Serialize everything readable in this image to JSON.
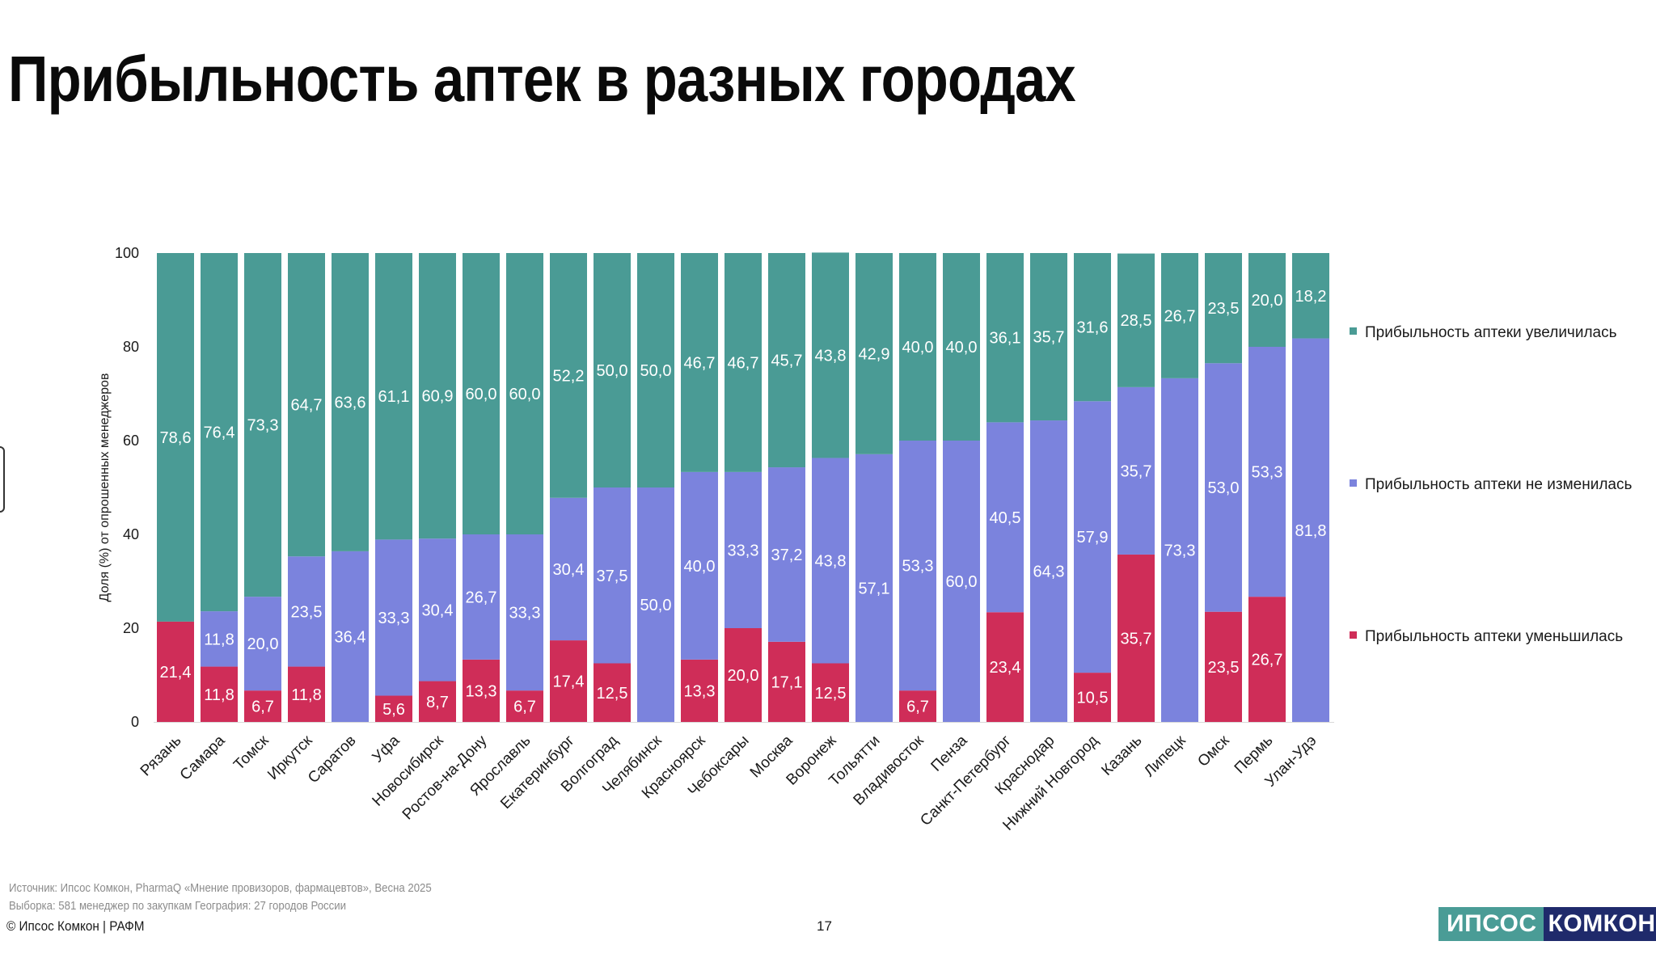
{
  "title": "Прибыльность аптек в разных городах",
  "footer": {
    "source_line1": "Источник: Ипсос Комкон, PharmaQ «Мнение провизоров, фармацевтов», Весна 2025",
    "source_line2": "Выборка: 581 менеджер по закупкам География: 27 городов России",
    "copyright": "© Ипсос Комкон | РАФМ",
    "page_number": "17"
  },
  "logo": {
    "part1": "ИПСОС",
    "part2": "КОМКОН"
  },
  "colors": {
    "increased": "#4a9b95",
    "unchanged": "#7b83dd",
    "decreased": "#cf2d58",
    "axis_text": "#1a1a1a",
    "label_text": "#ffffff"
  },
  "chart_data": {
    "type": "bar",
    "stacked": true,
    "ylabel": "Доля (%) от опрошенных менеджеров",
    "xlabel": "",
    "ylim": [
      0,
      100
    ],
    "yticks": [
      0,
      20,
      40,
      60,
      80,
      100
    ],
    "legend_position": "right",
    "categories": [
      "Рязань",
      "Самара",
      "Томск",
      "Иркутск",
      "Саратов",
      "Уфа",
      "Новосибирск",
      "Ростов-на-Дону",
      "Ярославль",
      "Екатеринбург",
      "Волгоград",
      "Челябинск",
      "Красноярск",
      "Чебоксары",
      "Москва",
      "Воронеж",
      "Тольятти",
      "Владивосток",
      "Пенза",
      "Санкт-Петербург",
      "Краснодар",
      "Нижний Новгород",
      "Казань",
      "Липецк",
      "Омск",
      "Пермь",
      "Улан-Удэ"
    ],
    "series": [
      {
        "key": "decreased",
        "name": "Прибыльность аптеки уменьшилась",
        "values": [
          21.4,
          11.8,
          6.7,
          11.8,
          0,
          5.6,
          8.7,
          13.3,
          6.7,
          17.4,
          12.5,
          0,
          13.3,
          20.0,
          17.1,
          12.5,
          0,
          6.7,
          0,
          23.4,
          0,
          10.5,
          35.7,
          0,
          23.5,
          26.7,
          0
        ],
        "labels": [
          "21,4",
          "11,8",
          "6,7",
          "11,8",
          "",
          "5,6",
          "8,7",
          "13,3",
          "6,7",
          "17,4",
          "12,5",
          "",
          "13,3",
          "20,0",
          "17,1",
          "12,5",
          "",
          "6,7",
          "",
          "23,4",
          "",
          "10,5",
          "35,7",
          "",
          "23,5",
          "26,7",
          ""
        ]
      },
      {
        "key": "unchanged",
        "name": "Прибыльность аптеки не изменилась",
        "values": [
          0,
          11.8,
          20.0,
          23.5,
          36.4,
          33.3,
          30.4,
          26.7,
          33.3,
          30.4,
          37.5,
          50.0,
          40.0,
          33.3,
          37.2,
          43.8,
          57.1,
          53.3,
          60.0,
          40.5,
          64.3,
          57.9,
          35.7,
          73.3,
          53.0,
          53.3,
          81.8
        ],
        "labels": [
          "",
          "11,8",
          "20,0",
          "23,5",
          "36,4",
          "33,3",
          "30,4",
          "26,7",
          "33,3",
          "30,4",
          "37,5",
          "50,0",
          "40,0",
          "33,3",
          "37,2",
          "43,8",
          "57,1",
          "53,3",
          "60,0",
          "40,5",
          "64,3",
          "57,9",
          "35,7",
          "73,3",
          "53,0",
          "53,3",
          "81,8"
        ]
      },
      {
        "key": "increased",
        "name": "Прибыльность аптеки увеличилась",
        "values": [
          78.6,
          76.4,
          73.3,
          64.7,
          63.6,
          61.1,
          60.9,
          60.0,
          60.0,
          52.2,
          50.0,
          50.0,
          46.7,
          46.7,
          45.7,
          43.8,
          42.9,
          40.0,
          40.0,
          36.1,
          35.7,
          31.6,
          28.5,
          26.7,
          23.5,
          20.0,
          18.2
        ],
        "labels": [
          "78,6",
          "76,4",
          "73,3",
          "64,7",
          "63,6",
          "61,1",
          "60,9",
          "60,0",
          "60,0",
          "52,2",
          "50,0",
          "50,0",
          "46,7",
          "46,7",
          "45,7",
          "43,8",
          "42,9",
          "40,0",
          "40,0",
          "36,1",
          "35,7",
          "31,6",
          "28,5",
          "26,7",
          "23,5",
          "20,0",
          "18,2"
        ]
      }
    ],
    "legend": [
      {
        "key": "increased",
        "label": "Прибыльность аптеки увеличилась"
      },
      {
        "key": "unchanged",
        "label": "Прибыльность аптеки не изменилась"
      },
      {
        "key": "decreased",
        "label": "Прибыльность аптеки уменьшилась"
      }
    ]
  }
}
